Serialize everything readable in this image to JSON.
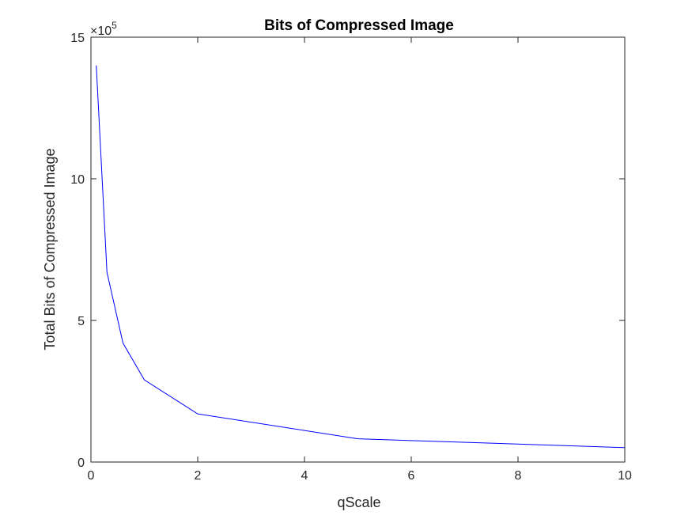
{
  "chart_data": {
    "type": "line",
    "title": "Bits of Compressed Image",
    "xlabel": "qScale",
    "ylabel": "Total Bits of Compressed Image",
    "xlim": [
      0,
      10
    ],
    "ylim": [
      0,
      1500000
    ],
    "x_ticks": [
      0,
      2,
      4,
      6,
      8,
      10
    ],
    "x_tick_labels": [
      "0",
      "2",
      "4",
      "6",
      "8",
      "10"
    ],
    "y_ticks": [
      0,
      500000,
      1000000,
      1500000
    ],
    "y_tick_labels": [
      "0",
      "5",
      "10",
      "15"
    ],
    "y_exponent_base": "×10",
    "y_exponent_power": "5",
    "grid": false,
    "series": [
      {
        "color": "#0000ff",
        "x": [
          0.1,
          0.3,
          0.6,
          1,
          2,
          5,
          10
        ],
        "y": [
          1400000,
          670000,
          420000,
          290000,
          170000,
          82000,
          51000
        ]
      }
    ]
  }
}
